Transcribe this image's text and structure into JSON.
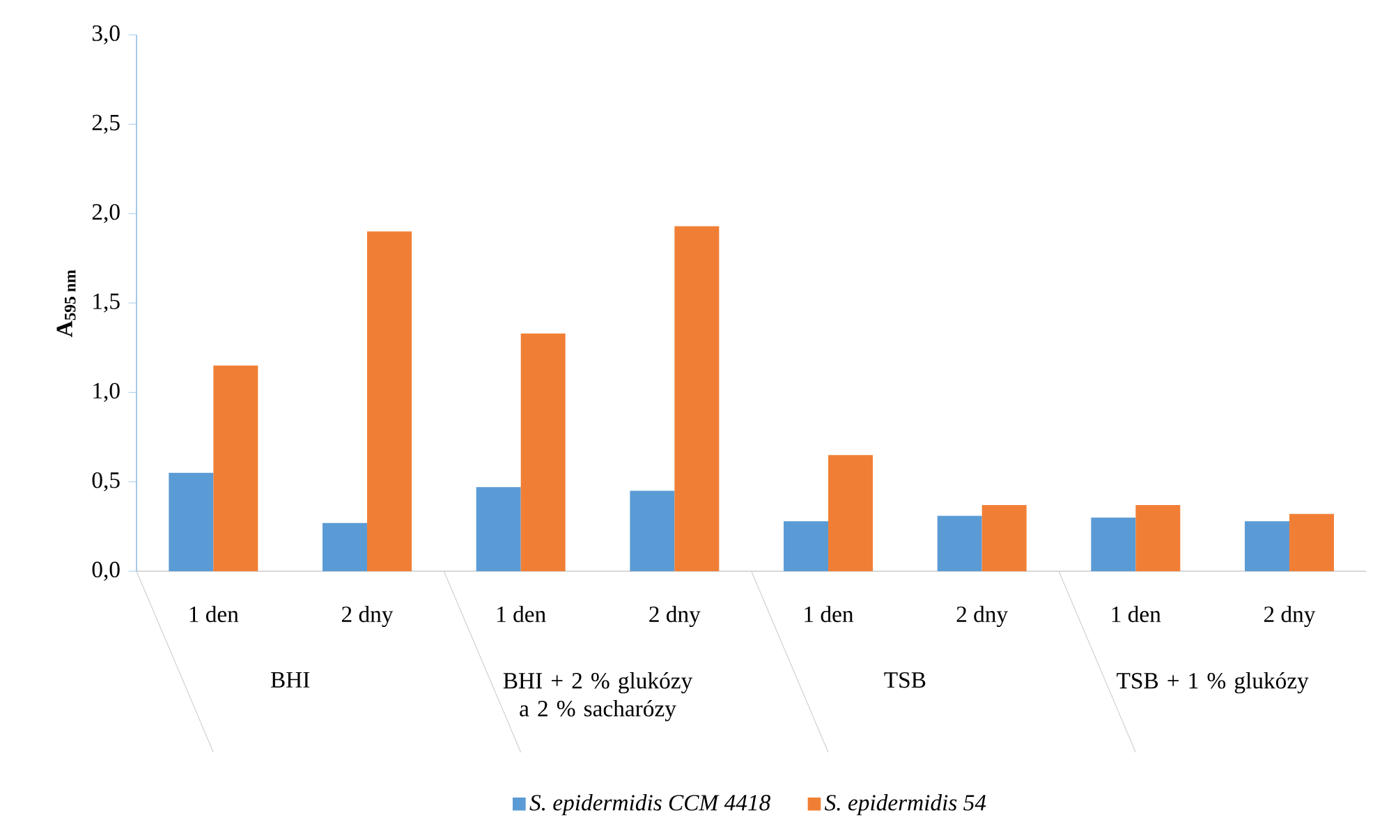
{
  "chart_data": {
    "type": "bar",
    "categories": [
      "1 den",
      "2 dny",
      "1 den",
      "2 dny",
      "1 den",
      "2 dny",
      "1 den",
      "2 dny"
    ],
    "series": [
      {
        "name": "S. epidermidis CCM 4418",
        "color": "#5b9bd5",
        "values": [
          0.55,
          0.27,
          0.47,
          0.45,
          0.28,
          0.31,
          0.3,
          0.28
        ]
      },
      {
        "name": "S. epidermidis 54",
        "color": "#f07f35",
        "values": [
          1.15,
          1.9,
          1.33,
          1.93,
          0.65,
          0.37,
          0.37,
          0.32
        ]
      }
    ],
    "annotations": [
      "BHI",
      "BHI + 2 % glukózy a 2 % sacharózy",
      "TSB",
      "TSB + 1 % glukózy"
    ],
    "ylabel": "**A**$_{595 nm}$",
    "ylim": [
      0,
      3
    ],
    "yticks": [
      {
        "value": 0,
        "label": "0,0"
      },
      {
        "value": 0.5,
        "label": "0,5"
      },
      {
        "value": 1,
        "label": "1,0"
      },
      {
        "value": 1.5,
        "label": "1,5"
      },
      {
        "value": 2,
        "label": "2,0"
      },
      {
        "value": 2.5,
        "label": "2,5"
      },
      {
        "value": 3,
        "label": "3,0"
      }
    ],
    "legend": "bottom"
  }
}
